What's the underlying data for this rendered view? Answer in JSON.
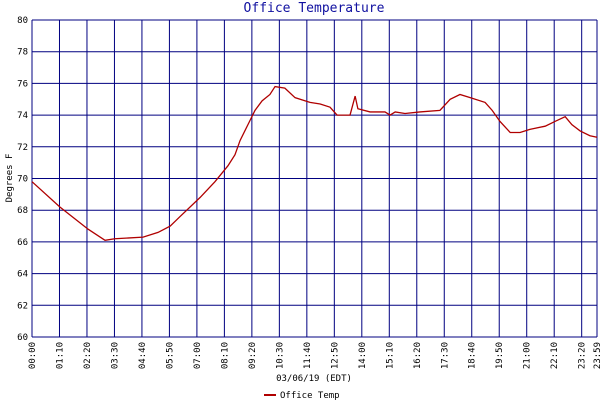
{
  "chart_data": {
    "type": "line",
    "title": "Office Temperature",
    "y_label": "Degrees F",
    "x_label": "03/06/19 (EDT)",
    "x": [
      0,
      71,
      143,
      186,
      211,
      283,
      321,
      352,
      377,
      428,
      466,
      499,
      517,
      530,
      550,
      568,
      586,
      606,
      619,
      644,
      670,
      708,
      734,
      759,
      777,
      810,
      823,
      830,
      861,
      899,
      912,
      925,
      950,
      988,
      1039,
      1065,
      1090,
      1116,
      1154,
      1172,
      1192,
      1218,
      1243,
      1268,
      1307,
      1332,
      1358,
      1375,
      1396,
      1421,
      1439
    ],
    "series": [
      {
        "name": "Office Temp",
        "color": "#b00000",
        "values": [
          69.8,
          68.2,
          66.8,
          66.1,
          66.2,
          66.3,
          66.6,
          67.0,
          67.6,
          68.8,
          69.8,
          70.8,
          71.5,
          72.4,
          73.4,
          74.3,
          74.9,
          75.3,
          75.8,
          75.7,
          75.1,
          74.8,
          74.7,
          74.5,
          74.0,
          74.0,
          75.2,
          74.4,
          74.2,
          74.2,
          74.0,
          74.2,
          74.1,
          74.2,
          74.3,
          75.0,
          75.3,
          75.1,
          74.8,
          74.3,
          73.6,
          72.9,
          72.9,
          73.1,
          73.3,
          73.6,
          73.9,
          73.4,
          73.0,
          72.7,
          72.6
        ]
      }
    ],
    "xlim": [
      0,
      1439
    ],
    "xticks": [
      {
        "value": 0,
        "label": "00:00"
      },
      {
        "value": 70,
        "label": "01:10"
      },
      {
        "value": 140,
        "label": "02:20"
      },
      {
        "value": 210,
        "label": "03:30"
      },
      {
        "value": 280,
        "label": "04:40"
      },
      {
        "value": 350,
        "label": "05:50"
      },
      {
        "value": 420,
        "label": "07:00"
      },
      {
        "value": 490,
        "label": "08:10"
      },
      {
        "value": 560,
        "label": "09:20"
      },
      {
        "value": 630,
        "label": "10:30"
      },
      {
        "value": 700,
        "label": "11:40"
      },
      {
        "value": 770,
        "label": "12:50"
      },
      {
        "value": 840,
        "label": "14:00"
      },
      {
        "value": 910,
        "label": "15:10"
      },
      {
        "value": 980,
        "label": "16:20"
      },
      {
        "value": 1050,
        "label": "17:30"
      },
      {
        "value": 1120,
        "label": "18:40"
      },
      {
        "value": 1190,
        "label": "19:50"
      },
      {
        "value": 1260,
        "label": "21:00"
      },
      {
        "value": 1330,
        "label": "22:10"
      },
      {
        "value": 1400,
        "label": "23:20"
      },
      {
        "value": 1439,
        "label": "23:59"
      }
    ],
    "ylim": [
      60,
      80
    ],
    "yticks": [
      60,
      62,
      64,
      66,
      68,
      70,
      72,
      74,
      76,
      78,
      80
    ],
    "grid": true,
    "grid_color": "#000080"
  }
}
